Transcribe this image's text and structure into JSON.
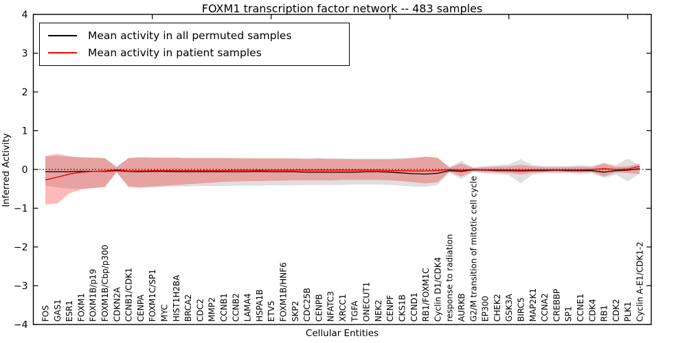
{
  "chart_data": {
    "type": "line",
    "title": "FOXM1 transcription factor network -- 483 samples",
    "xlabel": "Cellular Entities",
    "ylabel": "Inferred Activity",
    "ylim": [
      -4,
      4
    ],
    "yticks": [
      4,
      3,
      2,
      1,
      0,
      -1,
      -2,
      -3,
      -4
    ],
    "ytick_labels": [
      "4",
      "3",
      "2",
      "1",
      "0",
      "−1",
      "−2",
      "−3",
      "−4"
    ],
    "grid": false,
    "legend": {
      "position": "upper left",
      "items": [
        {
          "label": "Mean activity in all permuted samples",
          "color": "#000000"
        },
        {
          "label": "Mean activity in patient samples",
          "color": "#ff0000"
        }
      ]
    },
    "zero_line": {
      "y": 0,
      "style": "dotted",
      "color": "#000000"
    },
    "top_axis_tick_indices": [
      9,
      19,
      29,
      39,
      49
    ],
    "categories": [
      "FOS",
      "GAS1",
      "ESR1",
      "FOXM1",
      "FOXM1B/p19",
      "FOXM1B/Cbp/p300",
      "CDKN2A",
      "CCNB1/CDK1",
      "CENPA",
      "FOXM1C/SP1",
      "MYC",
      "HIST1H2BA",
      "BRCA2",
      "CDC2",
      "MMP2",
      "CCNB1",
      "CCNB2",
      "LAMA4",
      "HSPA1B",
      "ETV5",
      "FOXM1B/HNF6",
      "SKP2",
      "CDC25B",
      "CENPB",
      "NFATC3",
      "XRCC1",
      "TGFA",
      "ONECUT1",
      "NEK2",
      "CENPF",
      "CKS1B",
      "CCND1",
      "RB1/FOXM1C",
      "Cyclin D1/CDK4",
      "response to radiation",
      "AURKB",
      "G2/M transition of mitotic cell cycle",
      "EP300",
      "CHEK2",
      "GSK3A",
      "BIRC5",
      "MAP2K1",
      "CCNA2",
      "CREBBP",
      "SP1",
      "CCNE1",
      "CDK4",
      "RB1",
      "CDK2",
      "PLK1",
      "Cyclin A-E1/CDK1-2"
    ],
    "series": [
      {
        "name": "Mean activity in all permuted samples",
        "color": "#000000",
        "width": 1.3,
        "values": [
          -0.06,
          -0.06,
          -0.06,
          -0.05,
          -0.05,
          -0.05,
          -0.03,
          -0.05,
          -0.06,
          -0.05,
          -0.05,
          -0.06,
          -0.06,
          -0.06,
          -0.06,
          -0.06,
          -0.06,
          -0.06,
          -0.05,
          -0.06,
          -0.06,
          -0.06,
          -0.07,
          -0.07,
          -0.07,
          -0.07,
          -0.07,
          -0.06,
          -0.06,
          -0.07,
          -0.09,
          -0.11,
          -0.12,
          -0.1,
          -0.03,
          -0.05,
          -0.01,
          -0.02,
          -0.03,
          -0.03,
          -0.04,
          -0.03,
          -0.03,
          -0.02,
          -0.03,
          -0.03,
          -0.03,
          -0.07,
          -0.03,
          -0.02,
          0.02
        ]
      },
      {
        "name": "Mean activity in patient samples",
        "color": "#ff0000",
        "width": 1.5,
        "values": [
          -0.27,
          -0.2,
          -0.12,
          -0.07,
          -0.05,
          -0.04,
          -0.01,
          -0.04,
          -0.04,
          -0.03,
          -0.03,
          -0.03,
          -0.03,
          -0.03,
          -0.03,
          -0.03,
          -0.02,
          -0.02,
          -0.02,
          -0.02,
          -0.02,
          -0.02,
          -0.02,
          -0.02,
          -0.02,
          -0.02,
          -0.02,
          -0.02,
          -0.02,
          -0.03,
          -0.03,
          -0.04,
          -0.04,
          -0.03,
          0.0,
          -0.02,
          0.0,
          -0.01,
          -0.01,
          -0.01,
          -0.02,
          -0.01,
          -0.01,
          -0.01,
          -0.01,
          -0.01,
          0.0,
          0.02,
          0.0,
          0.01,
          0.08
        ]
      }
    ],
    "bands": [
      {
        "name": "permuted-samples-range",
        "color": "#808080",
        "alpha": 0.25,
        "upper": [
          0.33,
          0.35,
          0.33,
          0.32,
          0.31,
          0.3,
          0.07,
          0.3,
          0.32,
          0.31,
          0.31,
          0.31,
          0.3,
          0.3,
          0.3,
          0.3,
          0.3,
          0.3,
          0.29,
          0.29,
          0.29,
          0.29,
          0.29,
          0.29,
          0.29,
          0.28,
          0.28,
          0.28,
          0.28,
          0.28,
          0.29,
          0.31,
          0.33,
          0.3,
          0.06,
          0.22,
          0.05,
          0.09,
          0.11,
          0.13,
          0.26,
          0.12,
          0.09,
          0.09,
          0.09,
          0.11,
          0.09,
          0.18,
          0.11,
          0.28,
          0.1
        ],
        "lower": [
          -0.42,
          -0.46,
          -0.5,
          -0.5,
          -0.48,
          -0.46,
          -0.08,
          -0.46,
          -0.48,
          -0.46,
          -0.45,
          -0.44,
          -0.44,
          -0.43,
          -0.43,
          -0.43,
          -0.42,
          -0.42,
          -0.42,
          -0.41,
          -0.41,
          -0.41,
          -0.4,
          -0.4,
          -0.4,
          -0.4,
          -0.39,
          -0.39,
          -0.39,
          -0.4,
          -0.42,
          -0.44,
          -0.45,
          -0.4,
          -0.08,
          -0.25,
          -0.06,
          -0.1,
          -0.12,
          -0.14,
          -0.36,
          -0.13,
          -0.1,
          -0.1,
          -0.1,
          -0.12,
          -0.1,
          -0.22,
          -0.13,
          -0.31,
          -0.1
        ]
      },
      {
        "name": "patient-samples-range",
        "color": "#ff0000",
        "alpha": 0.27,
        "upper": [
          0.35,
          0.4,
          0.34,
          0.31,
          0.3,
          0.29,
          0.06,
          0.29,
          0.31,
          0.3,
          0.3,
          0.3,
          0.29,
          0.29,
          0.29,
          0.29,
          0.28,
          0.28,
          0.28,
          0.28,
          0.28,
          0.28,
          0.27,
          0.28,
          0.27,
          0.27,
          0.26,
          0.26,
          0.26,
          0.26,
          0.27,
          0.29,
          0.33,
          0.3,
          0.05,
          0.15,
          0.04,
          0.06,
          0.07,
          0.08,
          0.12,
          0.08,
          0.06,
          0.06,
          0.06,
          0.07,
          0.06,
          0.15,
          0.07,
          0.08,
          0.15
        ],
        "lower": [
          -0.9,
          -0.88,
          -0.62,
          -0.52,
          -0.48,
          -0.45,
          -0.07,
          -0.44,
          -0.46,
          -0.44,
          -0.42,
          -0.4,
          -0.38,
          -0.36,
          -0.34,
          -0.32,
          -0.31,
          -0.3,
          -0.3,
          -0.29,
          -0.29,
          -0.28,
          -0.28,
          -0.28,
          -0.28,
          -0.27,
          -0.27,
          -0.27,
          -0.27,
          -0.28,
          -0.3,
          -0.33,
          -0.36,
          -0.33,
          -0.06,
          -0.18,
          -0.05,
          -0.07,
          -0.08,
          -0.09,
          -0.13,
          -0.09,
          -0.07,
          -0.07,
          -0.07,
          -0.08,
          -0.07,
          -0.18,
          -0.08,
          -0.09,
          -0.12
        ]
      }
    ]
  }
}
